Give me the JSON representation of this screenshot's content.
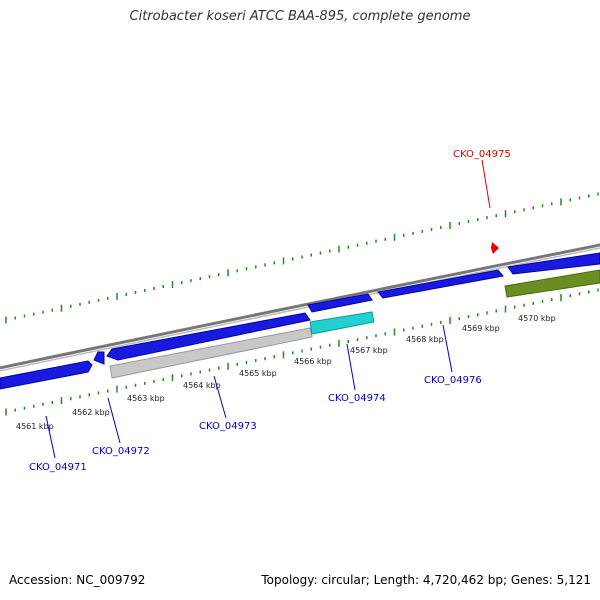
{
  "title": "Citrobacter koseri ATCC BAA-895, complete genome",
  "footer": {
    "accession": "Accession: NC_009792",
    "summary": "Topology: circular; Length: 4,720,462 bp; Genes: 5,121"
  },
  "colors": {
    "forward_gene": "#1a1adf",
    "reverse_gene": "#0000ff",
    "pseudo_gene": "#c8c8c8",
    "highlight_gene": "#1ecfcf",
    "rna_gene": "#6b8e23",
    "tick": "#228b22",
    "label_blue": "#0000cc",
    "label_red": "#dd0000",
    "backbone": "#888888"
  },
  "ruler": {
    "labels": [
      "4561 kbp",
      "4562 kbp",
      "4563 kbp",
      "4564 kbp",
      "4565 kbp",
      "4566 kbp",
      "4567 kbp",
      "4568 kbp",
      "4569 kbp",
      "4570 kbp"
    ]
  },
  "genes": [
    {
      "label": "CKO_04971",
      "color": "blue"
    },
    {
      "label": "CKO_04972",
      "color": "blue"
    },
    {
      "label": "CKO_04973",
      "color": "blue"
    },
    {
      "label": "CKO_04974",
      "color": "blue"
    },
    {
      "label": "CKO_04976",
      "color": "blue"
    },
    {
      "label": "CKO_04975",
      "color": "red"
    }
  ]
}
